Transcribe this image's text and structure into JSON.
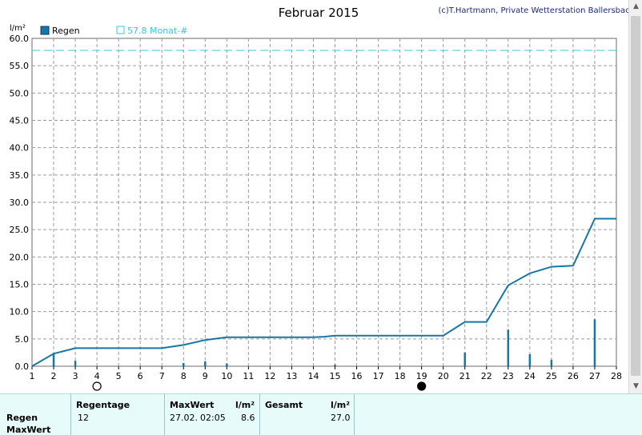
{
  "chart_data": {
    "type": "line",
    "title": "Februar 2015",
    "copyright": "(c)T.Hartmann, Private Wetterstation Ballersbach",
    "ylabel": "l/m²",
    "ylim": [
      0,
      60
    ],
    "y_ticks": [
      "0.0",
      "5.0",
      "10.0",
      "15.0",
      "20.0",
      "25.0",
      "30.0",
      "35.0",
      "40.0",
      "45.0",
      "50.0",
      "55.0",
      "60.0"
    ],
    "xlim": [
      1,
      28
    ],
    "x_ticks": [
      "1",
      "2",
      "3",
      "4",
      "5",
      "6",
      "7",
      "8",
      "9",
      "10",
      "11",
      "12",
      "13",
      "14",
      "15",
      "16",
      "17",
      "18",
      "19",
      "20",
      "21",
      "22",
      "23",
      "24",
      "25",
      "26",
      "27",
      "28"
    ],
    "grid": true,
    "legend": [
      {
        "label": "Regen",
        "color": "#1677a6",
        "style": "filled"
      },
      {
        "label": "57.8 Monat-#",
        "color": "#34c8dc",
        "style": "outline"
      }
    ],
    "reference_line": {
      "value": 57.8,
      "color": "#34c8dc"
    },
    "moon_phases": [
      {
        "day": 4,
        "phase": "full"
      },
      {
        "day": 19,
        "phase": "new"
      }
    ],
    "series": [
      {
        "name": "Regen",
        "kind": "cumulative-line",
        "color": "#1677a6",
        "x": [
          1,
          2,
          3,
          4,
          5,
          6,
          7,
          8,
          9,
          10,
          11,
          12,
          13,
          14,
          14.5,
          15,
          16,
          17,
          18,
          19,
          20,
          21,
          22,
          23,
          24,
          25,
          26,
          27,
          28
        ],
        "y": [
          0,
          2.3,
          3.3,
          3.3,
          3.3,
          3.3,
          3.3,
          3.9,
          4.8,
          5.3,
          5.3,
          5.3,
          5.3,
          5.3,
          5.4,
          5.6,
          5.6,
          5.6,
          5.6,
          5.6,
          5.6,
          8.1,
          8.1,
          14.8,
          17.0,
          18.2,
          18.4,
          27.0,
          27.0
        ]
      },
      {
        "name": "Regen",
        "kind": "daily-bars",
        "color": "#1677a6",
        "x": [
          2,
          3,
          8,
          9,
          10,
          15,
          21,
          23,
          24,
          25,
          27
        ],
        "y": [
          2.3,
          1.0,
          0.6,
          0.9,
          0.5,
          0.3,
          2.5,
          6.7,
          2.2,
          1.2,
          8.6
        ]
      }
    ]
  },
  "footer": {
    "row_regen": "Regen",
    "row_maxwert": "MaxWert",
    "regentage_header": "Regentage",
    "regentage_value": "12",
    "maxwert_header": "MaxWert",
    "maxwert_unit": "l/m²",
    "maxwert_date": "27.02.",
    "maxwert_time": "02:05",
    "maxwert_value": "8.6",
    "gesamt_header": "Gesamt",
    "gesamt_unit": "l/m²",
    "gesamt_value": "27.0"
  }
}
